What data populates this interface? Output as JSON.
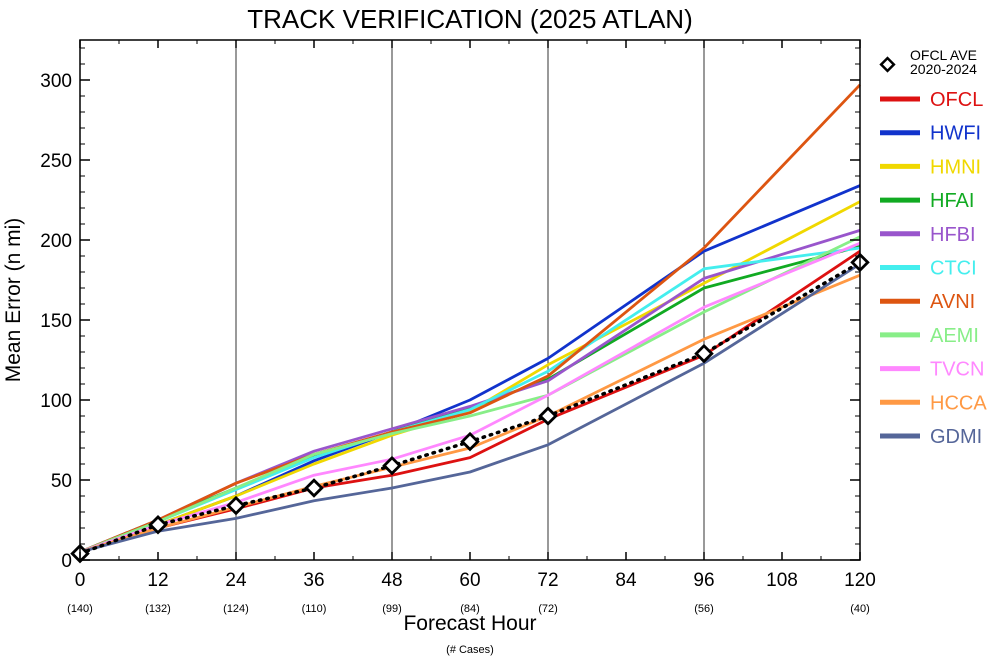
{
  "chart_data": {
    "type": "line",
    "title": "TRACK VERIFICATION (2025 ATLAN)",
    "xlabel": "Forecast Hour",
    "xlabel_sub": "(# Cases)",
    "ylabel": "Mean Error (n mi)",
    "xlim": [
      0,
      120
    ],
    "ylim": [
      0,
      325
    ],
    "x_ticks": [
      0,
      12,
      24,
      36,
      48,
      60,
      72,
      84,
      96,
      108,
      120
    ],
    "x_tick_labels": [
      "0",
      "12",
      "24",
      "36",
      "48",
      "60",
      "72",
      "84",
      "96",
      "108",
      "120"
    ],
    "y_ticks": [
      0,
      50,
      100,
      150,
      200,
      250,
      300
    ],
    "y_tick_labels": [
      "0",
      "50",
      "100",
      "150",
      "200",
      "250",
      "300"
    ],
    "case_counts": [
      {
        "x": 0,
        "label": "(140)"
      },
      {
        "x": 12,
        "label": "(132)"
      },
      {
        "x": 24,
        "label": "(124)"
      },
      {
        "x": 36,
        "label": "(110)"
      },
      {
        "x": 48,
        "label": "(99)"
      },
      {
        "x": 60,
        "label": "(84)"
      },
      {
        "x": 72,
        "label": "(72)"
      },
      {
        "x": 96,
        "label": "(56)"
      },
      {
        "x": 120,
        "label": "(40)"
      }
    ],
    "vertical_gridlines": [
      24,
      48,
      72,
      96
    ],
    "x": [
      0,
      12,
      24,
      36,
      48,
      60,
      72,
      96,
      120
    ],
    "series": [
      {
        "name": "OFCL",
        "color": "#dd1111",
        "values": [
          5,
          20,
          32,
          45,
          53,
          64,
          88,
          128,
          193
        ]
      },
      {
        "name": "HWFI",
        "color": "#1133cc",
        "values": [
          5,
          22,
          40,
          62,
          80,
          100,
          126,
          193,
          234
        ]
      },
      {
        "name": "HMNI",
        "color": "#f0d800",
        "values": [
          5,
          22,
          40,
          60,
          78,
          93,
          122,
          173,
          224
        ]
      },
      {
        "name": "HFAI",
        "color": "#11aa22",
        "values": [
          5,
          25,
          45,
          65,
          80,
          95,
          113,
          170,
          196
        ]
      },
      {
        "name": "HFBI",
        "color": "#9955cc",
        "values": [
          5,
          25,
          48,
          68,
          82,
          96,
          112,
          176,
          206
        ]
      },
      {
        "name": "CTCI",
        "color": "#44eeee",
        "values": [
          5,
          24,
          44,
          64,
          80,
          94,
          118,
          182,
          195
        ]
      },
      {
        "name": "AVNI",
        "color": "#dd5511",
        "values": [
          5,
          25,
          48,
          66,
          80,
          92,
          115,
          195,
          297
        ]
      },
      {
        "name": "AEMI",
        "color": "#88ee88",
        "values": [
          5,
          24,
          45,
          66,
          79,
          90,
          103,
          155,
          202
        ]
      },
      {
        "name": "TVCN",
        "color": "#ff88ff",
        "values": [
          5,
          22,
          36,
          53,
          63,
          78,
          103,
          158,
          198
        ]
      },
      {
        "name": "HCCA",
        "color": "#ff9944",
        "values": [
          5,
          20,
          33,
          46,
          58,
          70,
          90,
          138,
          178
        ]
      },
      {
        "name": "GDMI",
        "color": "#556699",
        "values": [
          5,
          18,
          26,
          37,
          45,
          55,
          72,
          123,
          185
        ]
      }
    ],
    "reference": {
      "name": "OFCL AVE 2020-2024",
      "line1": "OFCL AVE",
      "line2": "2020-2024",
      "style": "dotted-black-with-diamonds",
      "x": [
        0,
        12,
        24,
        36,
        48,
        60,
        72,
        96,
        120
      ],
      "values": [
        4,
        22,
        34,
        45,
        59,
        74,
        90,
        129,
        186
      ]
    }
  }
}
